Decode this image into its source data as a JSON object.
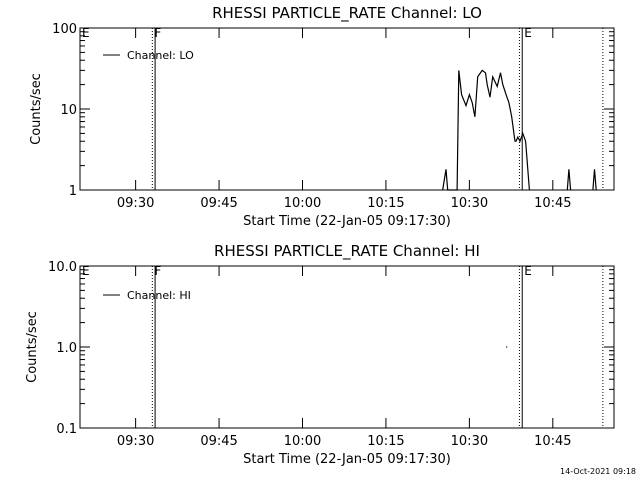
{
  "footer": {
    "timestamp": "14-Oct-2021 09:18"
  },
  "chart_data": [
    {
      "type": "line",
      "title": "RHESSI PARTICLE_RATE Channel: LO",
      "xlabel": "Start Time (22-Jan-05 09:17:30)",
      "ylabel": "Counts/sec",
      "yscale": "log",
      "ylim": [
        1,
        100
      ],
      "xlim": [
        "09:20",
        "10:56"
      ],
      "y_ticks": [
        "1",
        "10",
        "100"
      ],
      "x_ticks": [
        "09:30",
        "09:45",
        "10:00",
        "10:15",
        "10:30",
        "10:45"
      ],
      "legend": [
        "Channel: LO"
      ],
      "legend_position": "top-left",
      "markers": [
        {
          "label": "E",
          "time": "09:20",
          "style": "dotted"
        },
        {
          "label": "F",
          "time": "09:33",
          "style": "dotted"
        },
        {
          "label": "",
          "time": "09:33.5",
          "style": "solid"
        },
        {
          "label": "",
          "time": "10:39",
          "style": "dotted"
        },
        {
          "label": "E",
          "time": "10:39.5",
          "style": "solid"
        },
        {
          "label": "",
          "time": "10:54",
          "style": "dotted"
        }
      ],
      "series": [
        {
          "name": "Channel: LO",
          "x": [
            "10:25.2",
            "10:25.8",
            "10:26.1",
            "10:26.6",
            "10:27.8",
            "10:28.1",
            "10:28.6",
            "10:29.4",
            "10:30.0",
            "10:30.5",
            "10:31.0",
            "10:31.5",
            "10:32.3",
            "10:32.9",
            "10:33.2",
            "10:33.7",
            "10:34.2",
            "10:35.0",
            "10:35.6",
            "10:36.0",
            "10:36.6",
            "10:37.1",
            "10:37.6",
            "10:38.0",
            "10:38.2",
            "10:38.4",
            "10:38.7",
            "10:39.1",
            "10:39.6",
            "10:40.1",
            "10:40.5",
            "10:40.8"
          ],
          "y": [
            1,
            1.8,
            1,
            1,
            1,
            30,
            15,
            11,
            15,
            12,
            8,
            25,
            30,
            28,
            20,
            14,
            25,
            19,
            28,
            20,
            15,
            12,
            8,
            5,
            4,
            4,
            4.5,
            4,
            5,
            4,
            1.8,
            1
          ]
        },
        {
          "name": "Channel: LO",
          "x": [
            "10:47.6",
            "10:47.9",
            "10:48.2"
          ],
          "y": [
            1,
            1.8,
            1
          ]
        },
        {
          "name": "Channel: LO",
          "x": [
            "10:52.2",
            "10:52.5",
            "10:52.8"
          ],
          "y": [
            1,
            1.8,
            1
          ]
        }
      ]
    },
    {
      "type": "line",
      "title": "RHESSI PARTICLE_RATE Channel: HI",
      "xlabel": "Start Time (22-Jan-05 09:17:30)",
      "ylabel": "Counts/sec",
      "yscale": "log",
      "ylim": [
        0.1,
        10
      ],
      "xlim": [
        "09:20",
        "10:56"
      ],
      "y_ticks": [
        "0.1",
        "1.0",
        "10.0"
      ],
      "x_ticks": [
        "09:30",
        "09:45",
        "10:00",
        "10:15",
        "10:30",
        "10:45"
      ],
      "legend": [
        "Channel: HI"
      ],
      "legend_position": "top-left",
      "markers": [
        {
          "label": "E",
          "time": "09:20",
          "style": "dotted"
        },
        {
          "label": "F",
          "time": "09:33",
          "style": "dotted"
        },
        {
          "label": "",
          "time": "09:33.5",
          "style": "solid"
        },
        {
          "label": "",
          "time": "10:39",
          "style": "dotted"
        },
        {
          "label": "E",
          "time": "10:39.5",
          "style": "solid"
        },
        {
          "label": "",
          "time": "10:54",
          "style": "dotted"
        }
      ],
      "series": [
        {
          "name": "Channel: HI",
          "x": [
            "10:36.6",
            "10:36.8"
          ],
          "y": [
            1,
            1
          ]
        }
      ]
    }
  ]
}
